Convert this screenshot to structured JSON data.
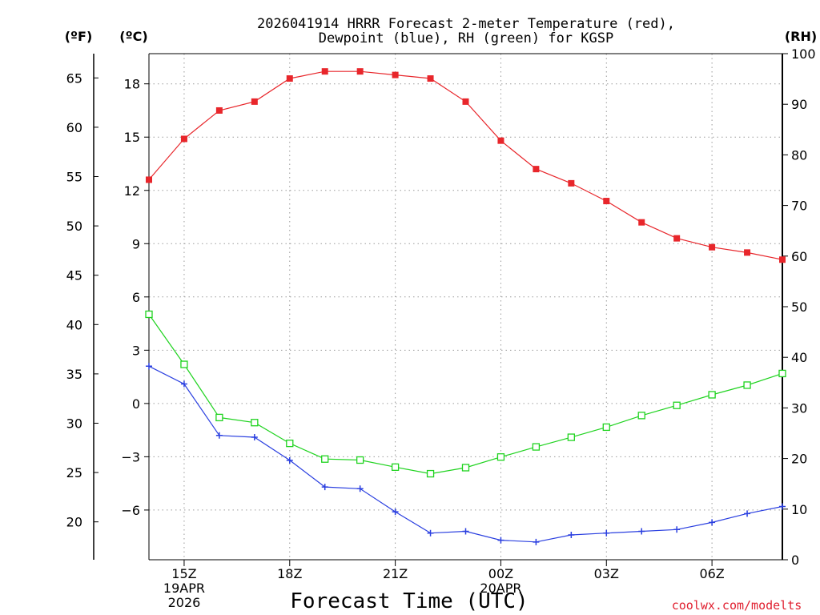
{
  "chart_data": {
    "type": "line",
    "title_line1": "2026041914 HRRR Forecast 2-meter Temperature (red),",
    "title_line2": "Dewpoint (blue), RH (green) for KGSP",
    "xlabel": "Forecast Time (UTC)",
    "credit": "coolwx.com/modelts",
    "units": {
      "fahrenheit": "(ºF)",
      "celsius": "(ºC)",
      "rh": "(RH)"
    },
    "x_hours": [
      14,
      15,
      16,
      17,
      18,
      19,
      20,
      21,
      22,
      23,
      24,
      25,
      26,
      27,
      28,
      29,
      30,
      31,
      32
    ],
    "x_ticks": [
      {
        "hour": 15,
        "lines": [
          "15Z",
          "19APR",
          "2026"
        ]
      },
      {
        "hour": 18,
        "lines": [
          "18Z"
        ]
      },
      {
        "hour": 21,
        "lines": [
          "21Z"
        ]
      },
      {
        "hour": 24,
        "lines": [
          "00Z",
          "20APR"
        ]
      },
      {
        "hour": 27,
        "lines": [
          "03Z"
        ]
      },
      {
        "hour": 30,
        "lines": [
          "06Z"
        ]
      }
    ],
    "xlim": [
      14,
      32
    ],
    "celsius_axis": {
      "range": [
        -8.8,
        19.7
      ],
      "ticks": [
        "-6",
        "-3",
        "0",
        "3",
        "6",
        "9",
        "12",
        "15",
        "18"
      ]
    },
    "fahrenheit_axis": {
      "ticks": [
        "20",
        "25",
        "30",
        "35",
        "40",
        "45",
        "50",
        "55",
        "60",
        "65"
      ]
    },
    "rh_axis": {
      "range": [
        0,
        100
      ],
      "ticks": [
        "0",
        "10",
        "20",
        "30",
        "40",
        "50",
        "60",
        "70",
        "80",
        "90",
        "100"
      ]
    },
    "series": [
      {
        "name": "2-meter Temperature",
        "axis": "celsius",
        "color": "#e8262b",
        "marker": "filled-square",
        "values": [
          12.6,
          14.9,
          16.5,
          17.0,
          18.3,
          18.7,
          18.7,
          18.5,
          18.3,
          17.0,
          14.8,
          13.2,
          12.4,
          11.4,
          10.2,
          9.3,
          8.8,
          8.5,
          8.1
        ]
      },
      {
        "name": "Dewpoint",
        "axis": "celsius",
        "color": "#2a3fe0",
        "marker": "plus",
        "values": [
          2.1,
          1.1,
          -1.8,
          -1.9,
          -3.2,
          -4.7,
          -4.8,
          -6.1,
          -7.3,
          -7.2,
          -7.7,
          -7.8,
          -7.4,
          -7.3,
          -7.2,
          -7.1,
          -6.7,
          -6.2,
          -5.8
        ]
      },
      {
        "name": "RH",
        "axis": "rh",
        "color": "#1fd31f",
        "marker": "open-square",
        "values": [
          48.5,
          38.6,
          28.1,
          27.1,
          23.0,
          19.9,
          19.7,
          18.3,
          17.0,
          18.2,
          20.3,
          22.3,
          24.2,
          26.2,
          28.5,
          30.5,
          32.6,
          34.5,
          36.8
        ]
      }
    ]
  }
}
